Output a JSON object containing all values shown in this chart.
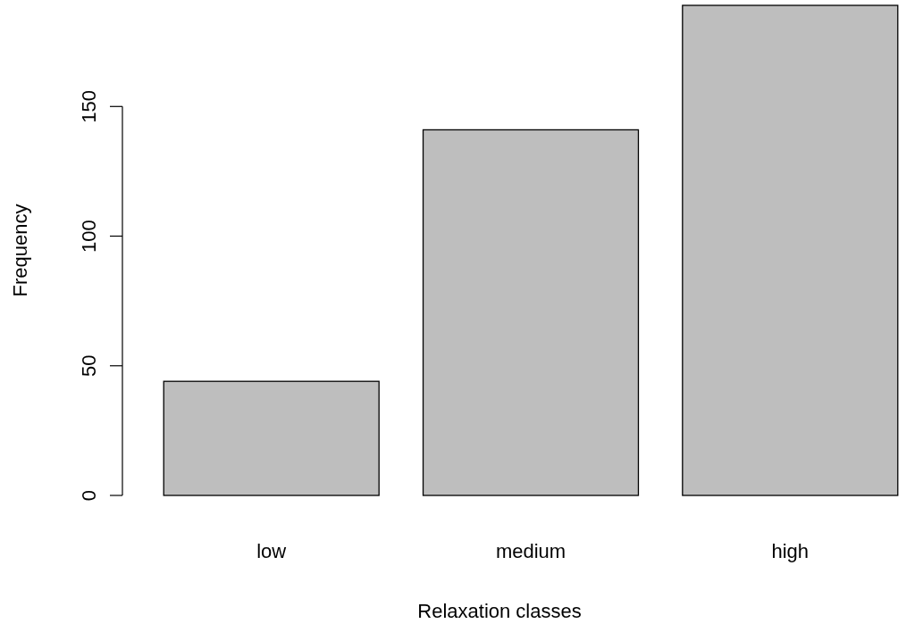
{
  "chart_data": {
    "type": "bar",
    "xlabel": "Relaxation classes",
    "ylabel": "Frequency",
    "categories": [
      "low",
      "medium",
      "high"
    ],
    "values": [
      44,
      141,
      189
    ],
    "color": "#bebebe",
    "ylim": [
      0,
      189
    ],
    "yticks": [
      0,
      50,
      100,
      150
    ],
    "grid": false
  }
}
